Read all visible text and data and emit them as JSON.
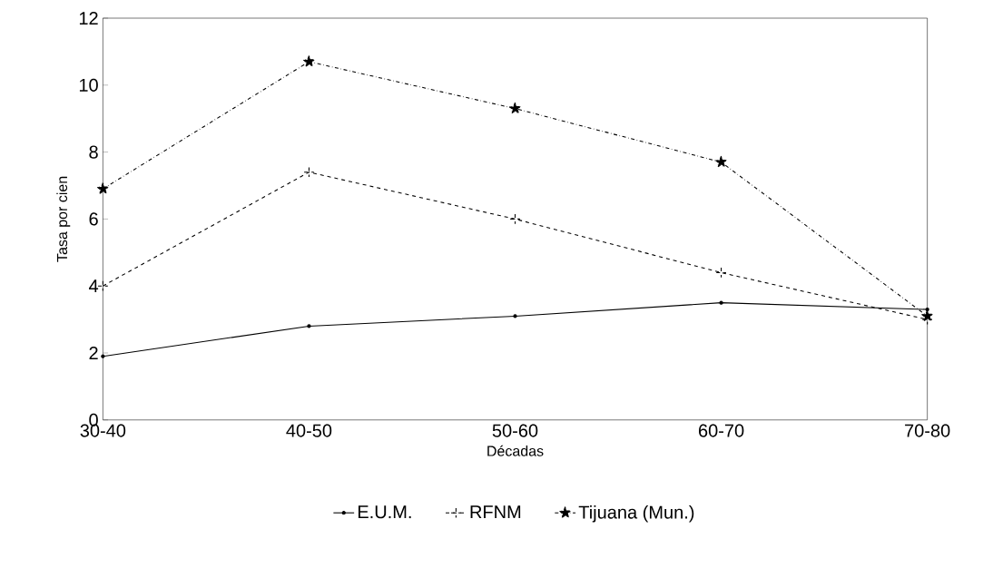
{
  "chart_data": {
    "type": "line",
    "xlabel": "Décadas",
    "ylabel": "Tasa por cien",
    "categories": [
      "30-40",
      "40-50",
      "50-60",
      "60-70",
      "70-80"
    ],
    "series": [
      {
        "name": "E.U.M.",
        "color": "#000000",
        "marker": "circle",
        "line_style": "solid",
        "values": [
          1.9,
          2.8,
          3.1,
          3.5,
          3.3
        ]
      },
      {
        "name": "RFNM",
        "color": "#000000",
        "marker": "cross",
        "line_style": "dashed",
        "values": [
          4.0,
          7.4,
          6.0,
          4.4,
          3.0
        ]
      },
      {
        "name": "Tijuana (Mun.)",
        "color": "#000000",
        "marker": "star",
        "line_style": "dotted",
        "values": [
          6.9,
          10.7,
          9.3,
          7.7,
          3.1
        ]
      }
    ],
    "ylim": [
      0,
      12
    ],
    "yticks": [
      0,
      2,
      4,
      6,
      8,
      10,
      12
    ],
    "grid": false,
    "legend": "bottom"
  }
}
